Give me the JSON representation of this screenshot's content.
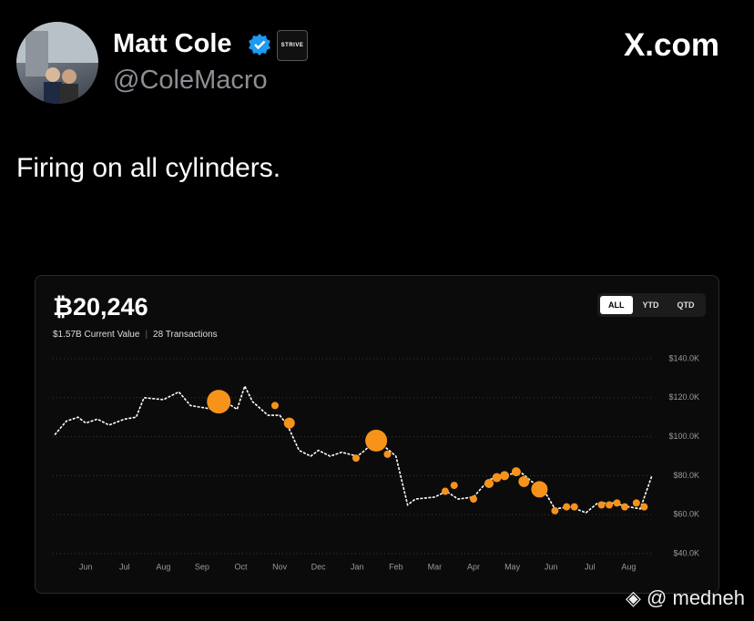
{
  "profile": {
    "name": "Matt Cole",
    "handle": "@ColeMacro",
    "badge": "STRIVE"
  },
  "site": "X.com",
  "tweet": "Firing on all cylinders.",
  "watermark": "◈ @ medneh",
  "chart_data": {
    "type": "line",
    "title": "₿20,246",
    "current_value": "$1.57B Current Value",
    "transactions": "28 Transactions",
    "ranges": [
      "ALL",
      "YTD",
      "QTD"
    ],
    "selected_range": 0,
    "grid": true,
    "xlim": [
      -0.85,
      14.65
    ],
    "xticks": [
      {
        "value": 0,
        "label": "Jun"
      },
      {
        "value": 1,
        "label": "Jul"
      },
      {
        "value": 2,
        "label": "Aug"
      },
      {
        "value": 3,
        "label": "Sep"
      },
      {
        "value": 4,
        "label": "Oct"
      },
      {
        "value": 5,
        "label": "Nov"
      },
      {
        "value": 6,
        "label": "Dec"
      },
      {
        "value": 7,
        "label": "Jan"
      },
      {
        "value": 8,
        "label": "Feb"
      },
      {
        "value": 9,
        "label": "Mar"
      },
      {
        "value": 10,
        "label": "Apr"
      },
      {
        "value": 11,
        "label": "May"
      },
      {
        "value": 12,
        "label": "Jun"
      },
      {
        "value": 13,
        "label": "Jul"
      },
      {
        "value": 14,
        "label": "Aug"
      }
    ],
    "ylim": [
      40000,
      140000
    ],
    "yticks": [
      {
        "value": 40000,
        "label": "$40.0K"
      },
      {
        "value": 60000,
        "label": "$60.0K"
      },
      {
        "value": 80000,
        "label": "$80.0K"
      },
      {
        "value": 100000,
        "label": "$100.0K"
      },
      {
        "value": 120000,
        "label": "$120.0K"
      },
      {
        "value": 140000,
        "label": "$140.0K"
      }
    ],
    "series": [
      {
        "color": "#ffffff",
        "x": [
          -0.8,
          -0.5,
          -0.2,
          0.0,
          0.3,
          0.6,
          1.0,
          1.3,
          1.5,
          2.0,
          2.4,
          2.7,
          3.0,
          3.3,
          3.6,
          3.9,
          4.1,
          4.3,
          4.7,
          5.0,
          5.2,
          5.5,
          5.8,
          6.0,
          6.3,
          6.6,
          7.0,
          7.2,
          7.4,
          7.7,
          8.0,
          8.3,
          8.5,
          9.0,
          9.3,
          9.6,
          10.0,
          10.4,
          10.8,
          11.2,
          11.5,
          11.8,
          12.1,
          12.5,
          12.9,
          13.2,
          13.6,
          14.0,
          14.3,
          14.6
        ],
        "values": [
          101000,
          108000,
          110000,
          107000,
          109000,
          106000,
          109000,
          110000,
          120000,
          119000,
          123000,
          116000,
          115000,
          114000,
          118000,
          114000,
          126000,
          118000,
          111000,
          111000,
          106000,
          93000,
          90000,
          93000,
          90000,
          92000,
          90000,
          93000,
          97000,
          95000,
          90000,
          65000,
          68000,
          69000,
          72000,
          68000,
          69000,
          78000,
          80000,
          82000,
          77000,
          73000,
          63000,
          64000,
          61000,
          66000,
          66000,
          64000,
          63000,
          80000
        ]
      },
      {
        "color": "#f7931a",
        "x": [
          3.43,
          4.88,
          5.25,
          6.97,
          7.49,
          7.78,
          9.27,
          9.5,
          10.0,
          10.4,
          10.6,
          10.8,
          11.1,
          11.3,
          11.7,
          12.1,
          12.4,
          12.6,
          13.3,
          13.5,
          13.7,
          13.9,
          14.2,
          14.4
        ],
        "values": [
          118000,
          116000,
          107000,
          89000,
          98000,
          91000,
          72000,
          75000,
          68000,
          76000,
          79000,
          80000,
          82000,
          77000,
          73000,
          62000,
          64000,
          64000,
          65000,
          65000,
          66000,
          64000,
          66000,
          64000
        ],
        "sizes": [
          13,
          4,
          6,
          4,
          12,
          4,
          4,
          4,
          4,
          5,
          5,
          5,
          5,
          6,
          9,
          4,
          4,
          4,
          4,
          4,
          4,
          4,
          4,
          4
        ]
      }
    ]
  }
}
